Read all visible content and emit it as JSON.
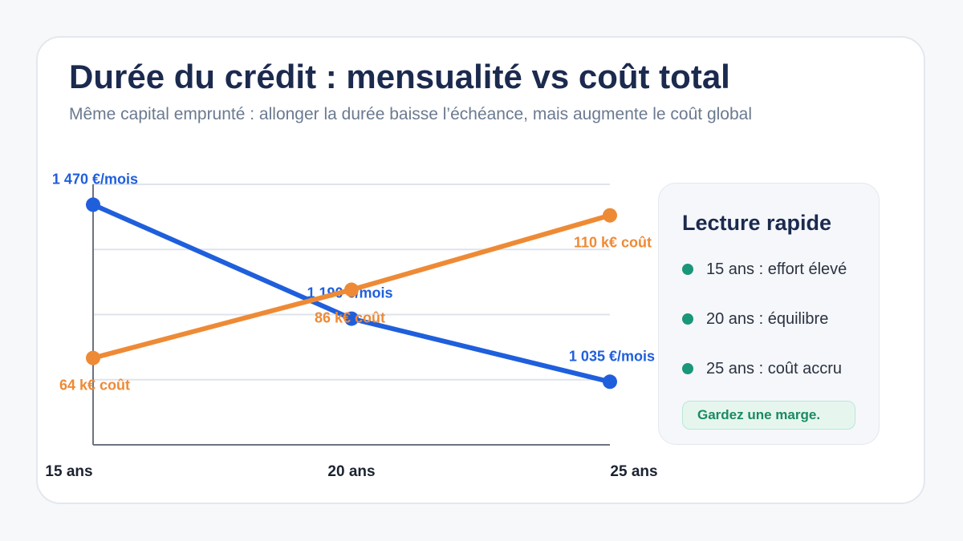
{
  "header": {
    "title": "Durée du crédit : mensualité vs coût total",
    "subtitle": "Même capital emprunté : allonger la durée baisse l’échéance, mais augmente le coût global"
  },
  "chart_data": {
    "type": "line",
    "categories": [
      "15 ans",
      "20 ans",
      "25 ans"
    ],
    "series": [
      {
        "key": "monthly",
        "values": [
          1470,
          1190,
          1035
        ],
        "labels": [
          "1 470 €/mois",
          "1 190 €/mois",
          "1 035 €/mois"
        ],
        "color": "#1f5fdc",
        "ylim": [
          880,
          1520
        ]
      },
      {
        "key": "cost",
        "values": [
          64,
          86,
          110
        ],
        "labels": [
          "64 k€ coût",
          "86 k€ coût",
          "110 k€ coût"
        ],
        "color": "#ee8a35",
        "ylim": [
          36,
          120
        ]
      }
    ],
    "grid": true,
    "legend": "none"
  },
  "panel": {
    "title": "Lecture rapide",
    "items": [
      {
        "label": "15 ans : effort élevé",
        "color": "#1a9678"
      },
      {
        "label": "20 ans : équilibre",
        "color": "#1a9678"
      },
      {
        "label": "25 ans : coût accru",
        "color": "#1a9678"
      }
    ],
    "badge": "Gardez une marge."
  }
}
